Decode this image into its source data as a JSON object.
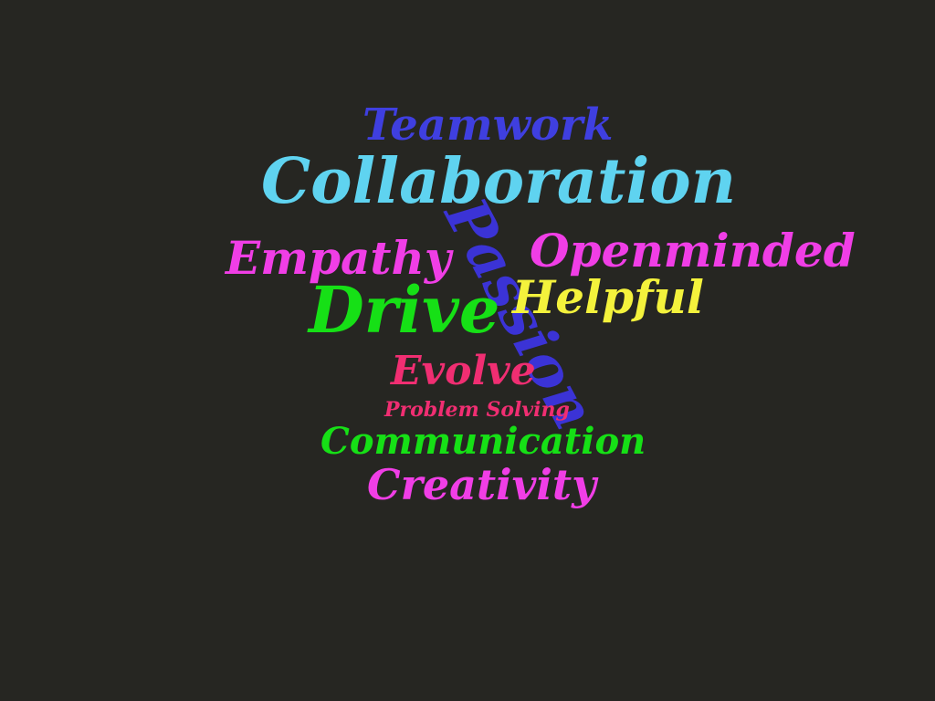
{
  "background_color": "#262622",
  "words": [
    {
      "key": "teamwork",
      "text": "Teamwork",
      "color": "#3f3fe0"
    },
    {
      "key": "collaboration",
      "text": "Collaboration",
      "color": "#5fd3f0"
    },
    {
      "key": "passion",
      "text": "Passion",
      "color": "#3b33d6"
    },
    {
      "key": "empathy",
      "text": "Empathy",
      "color": "#f03ee6"
    },
    {
      "key": "openminded",
      "text": "Openminded",
      "color": "#f03ee6"
    },
    {
      "key": "helpful",
      "text": "Helpful",
      "color": "#f4f23c"
    },
    {
      "key": "drive",
      "text": "Drive",
      "color": "#16e016"
    },
    {
      "key": "evolve",
      "text": "Evolve",
      "color": "#f02e72"
    },
    {
      "key": "problem_solving",
      "text": "Problem Solving",
      "color": "#f02e72"
    },
    {
      "key": "communication",
      "text": "Communication",
      "color": "#16e016"
    },
    {
      "key": "creativity",
      "text": "Creativity",
      "color": "#f03ee6"
    }
  ]
}
